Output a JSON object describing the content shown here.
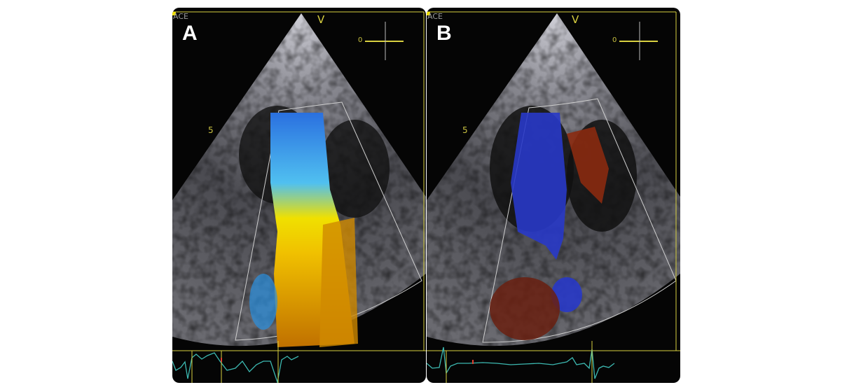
{
  "panels": [
    {
      "label": "A",
      "mode_label": "ACE",
      "orientation_marker": "V",
      "scale_zero": "0",
      "depth_marker": "5",
      "doppler": "color-flow-jet-blue-yellow"
    },
    {
      "label": "B",
      "mode_label": "ACE",
      "orientation_marker": "V",
      "scale_zero": "0",
      "depth_marker": "5",
      "doppler": "color-flow-blue-red"
    }
  ],
  "colors": {
    "overlay_yellow": "#d8d040",
    "ecg_trace": "#3cb8b0",
    "ecg_marker": "#e04030",
    "jet_yellow": "#f0d000",
    "jet_blue": "#2a90e0",
    "flow_red": "#8a2a10",
    "flow_blue": "#2838c8"
  }
}
